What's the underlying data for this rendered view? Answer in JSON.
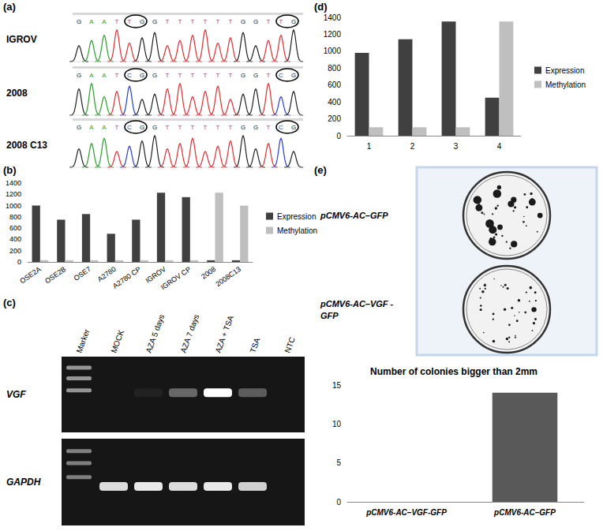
{
  "figure": {
    "panel_labels": [
      "(a)",
      "(b)",
      "(c)",
      "(d)",
      "(e)"
    ]
  },
  "sequencing": {
    "rows": [
      {
        "sample": "IGROV",
        "sequence": "GAATTGGTTTTTTGGTTG"
      },
      {
        "sample": "2008",
        "sequence": "GAATCGGTTTTTTGGTCG"
      },
      {
        "sample": "2008 C13",
        "sequence": "GAATCGGTTTTTTGGTCG"
      }
    ]
  },
  "gel": {
    "lanes": [
      "Marker",
      "MOCK",
      "AZA 5 days",
      "AZA 7 days",
      "AZA + TSA",
      "TSA",
      "NTC"
    ],
    "rows": [
      {
        "gene": "VGF",
        "intensity": [
          0.55,
          0,
          0.05,
          0.35,
          1,
          0.3,
          0
        ]
      },
      {
        "gene": "GAPDH",
        "intensity": [
          0.45,
          0.85,
          0.9,
          0.85,
          0.9,
          0.8,
          0
        ]
      }
    ]
  },
  "plates": {
    "rows": [
      {
        "label": "pCMV6-AC–GFP"
      },
      {
        "label": "pCMV6-AC–VGF - GFP"
      }
    ]
  },
  "chart_data": [
    {
      "type": "bar",
      "categories": [
        "OSE2A",
        "OSE2B",
        "OSE7",
        "A2780",
        "A2780 CP",
        "IGROV",
        "IGROV CP",
        "2008",
        "2008C13"
      ],
      "series": [
        {
          "name": "Expression",
          "color": "#404040",
          "values": [
            1000,
            750,
            850,
            500,
            750,
            1230,
            1150,
            30,
            30
          ]
        },
        {
          "name": "Methylation",
          "color": "#bfbfbf",
          "values": [
            30,
            30,
            30,
            30,
            30,
            30,
            30,
            1230,
            1000
          ]
        }
      ],
      "ylim": [
        0,
        1400
      ],
      "yticks": [
        0,
        200,
        400,
        600,
        800,
        1000,
        1200,
        1400
      ],
      "grid": false,
      "legend": "right"
    },
    {
      "type": "bar",
      "categories": [
        "1",
        "2",
        "3",
        "4"
      ],
      "series": [
        {
          "name": "Expression",
          "color": "#404040",
          "values": [
            980,
            1140,
            1350,
            450
          ]
        },
        {
          "name": "Methylation",
          "color": "#bfbfbf",
          "values": [
            100,
            100,
            100,
            1350
          ]
        }
      ],
      "ylim": [
        0,
        1400
      ],
      "yticks": [
        0,
        200,
        400,
        600,
        800,
        1000,
        1200,
        1400
      ],
      "grid": false,
      "legend": "right"
    },
    {
      "type": "bar",
      "title": "Number of colonies bigger than 2mm",
      "categories": [
        "pCMV6-AC–VGF-GFP",
        "pCMV6-AC–GFP"
      ],
      "values": [
        0,
        14
      ],
      "color": "#595959",
      "ylim": [
        0,
        15
      ],
      "yticks": [
        0,
        5,
        10,
        15
      ],
      "grid": false
    }
  ]
}
